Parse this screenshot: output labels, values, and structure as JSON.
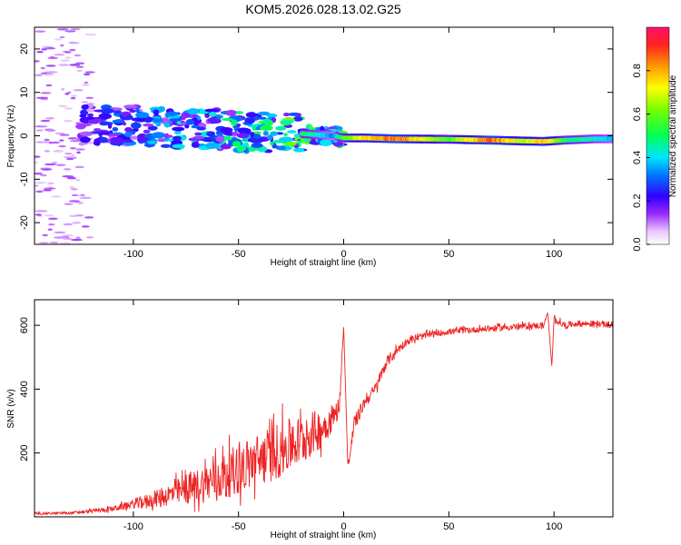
{
  "title": "KOM5.2026.028.13.02.G25",
  "colors": {
    "line": "#ee2222",
    "frame": "#000000",
    "background": "#ffffff"
  },
  "chart_data": [
    {
      "type": "heatmap",
      "title": "",
      "xlabel": "Height of straight line (km)",
      "ylabel": "Frequency (Hz)",
      "xlim": [
        -147,
        128
      ],
      "ylim": [
        -25,
        25
      ],
      "x_ticks": [
        -100,
        -50,
        0,
        50,
        100
      ],
      "y_ticks": [
        -20,
        -10,
        0,
        10,
        20
      ],
      "colorbar": {
        "label": "Normalized spectral amplitude",
        "range": [
          0,
          1
        ],
        "ticks": [
          0.0,
          0.2,
          0.4,
          0.6,
          0.8
        ]
      },
      "ridge": {
        "description": "dominant frequency ridge",
        "x": [
          -125,
          -100,
          -80,
          -60,
          -40,
          -20,
          -5,
          0,
          10,
          25,
          50,
          70,
          85,
          95,
          105,
          120,
          128
        ],
        "frequency": [
          2.5,
          2.5,
          1.5,
          1.5,
          0.8,
          0.5,
          0.0,
          -0.5,
          -0.5,
          -0.7,
          -0.8,
          -1.0,
          -1.2,
          -1.3,
          -1.0,
          -0.7,
          -0.7
        ],
        "amplitude": [
          0.2,
          0.3,
          0.35,
          0.4,
          0.45,
          0.55,
          0.35,
          0.6,
          0.8,
          0.95,
          0.6,
          0.95,
          0.7,
          0.85,
          0.55,
          0.45,
          0.4
        ]
      }
    },
    {
      "type": "line",
      "title": "",
      "xlabel": "Height of straight line (km)",
      "ylabel": "SNR (v/v)",
      "xlim": [
        -147,
        128
      ],
      "ylim": [
        0,
        680
      ],
      "x_ticks": [
        -100,
        -50,
        0,
        50,
        100
      ],
      "y_ticks": [
        200,
        400,
        600
      ],
      "series": [
        {
          "name": "SNR",
          "x": [
            -147,
            -130,
            -120,
            -110,
            -100,
            -90,
            -80,
            -70,
            -60,
            -50,
            -40,
            -30,
            -20,
            -10,
            -5,
            -2,
            0,
            2,
            5,
            10,
            15,
            20,
            25,
            30,
            40,
            50,
            60,
            70,
            80,
            90,
            95,
            97,
            99,
            100,
            105,
            110,
            120,
            128
          ],
          "y": [
            10,
            12,
            18,
            25,
            40,
            55,
            75,
            95,
            120,
            150,
            180,
            210,
            240,
            280,
            310,
            350,
            600,
            150,
            290,
            360,
            400,
            480,
            520,
            550,
            570,
            580,
            585,
            590,
            595,
            598,
            600,
            640,
            470,
            620,
            600,
            605,
            605,
            600
          ],
          "spread": [
            3,
            4,
            6,
            8,
            15,
            25,
            40,
            55,
            70,
            80,
            85,
            90,
            80,
            60,
            40,
            30,
            0,
            15,
            25,
            20,
            20,
            20,
            15,
            12,
            10,
            10,
            10,
            10,
            10,
            10,
            10,
            0,
            0,
            10,
            10,
            10,
            10,
            10
          ]
        }
      ]
    }
  ]
}
